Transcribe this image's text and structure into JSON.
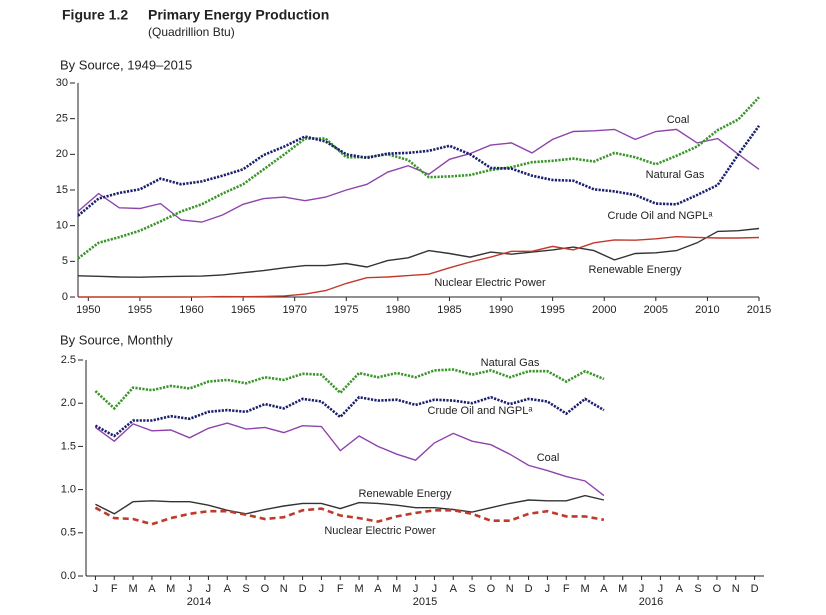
{
  "header": {
    "figure": "Figure 1.2",
    "title": "Primary Energy Production",
    "subtitle": "(Quadrillion Btu)"
  },
  "chart_data": [
    {
      "type": "line",
      "title": "By Source, 1949–2015",
      "x": [
        1949,
        1951,
        1953,
        1955,
        1957,
        1959,
        1961,
        1963,
        1965,
        1967,
        1969,
        1971,
        1973,
        1975,
        1977,
        1979,
        1981,
        1983,
        1985,
        1987,
        1989,
        1991,
        1993,
        1995,
        1997,
        1999,
        2001,
        2003,
        2005,
        2007,
        2009,
        2011,
        2013,
        2015
      ],
      "xlim": [
        1949,
        2015
      ],
      "xticks": [
        1950,
        1955,
        1960,
        1965,
        1970,
        1975,
        1980,
        1985,
        1990,
        1995,
        2000,
        2005,
        2010,
        2015
      ],
      "ylim": [
        0,
        30
      ],
      "yticks": [
        0,
        5,
        10,
        15,
        20,
        25,
        30
      ],
      "series": [
        {
          "name": "Coal",
          "color": "#8e44ad",
          "style": "solid",
          "values": [
            12,
            14.5,
            12.5,
            12.4,
            13.1,
            10.8,
            10.5,
            11.5,
            13,
            13.8,
            14,
            13.5,
            14,
            15,
            15.8,
            17.5,
            18.4,
            17.2,
            19.3,
            20.1,
            21.3,
            21.6,
            20.2,
            22.1,
            23.2,
            23.3,
            23.5,
            22.1,
            23.2,
            23.5,
            21.6,
            22.2,
            20,
            17.9
          ]
        },
        {
          "name": "Natural Gas",
          "color": "#3a962a",
          "style": "dotted",
          "values": [
            5.4,
            7.6,
            8.4,
            9.3,
            10.6,
            12,
            13,
            14.5,
            15.8,
            17.9,
            20,
            22.2,
            22.2,
            19.6,
            19.6,
            20,
            19.2,
            16.8,
            16.9,
            17.1,
            17.8,
            18.2,
            18.9,
            19.1,
            19.4,
            19,
            20.2,
            19.6,
            18.6,
            19.8,
            21.1,
            23.4,
            24.9,
            28
          ]
        },
        {
          "name": "Crude Oil and NGPLᵃ",
          "color": "#1a1f6e",
          "style": "dotted",
          "values": [
            11.4,
            13.8,
            14.6,
            15.1,
            16.6,
            15.8,
            16.2,
            17,
            17.9,
            19.9,
            21.1,
            22.5,
            21.8,
            20,
            19.5,
            20.1,
            20.2,
            20.5,
            21.2,
            20,
            18.1,
            18,
            17,
            16.4,
            16.3,
            15.1,
            14.8,
            14.3,
            13.1,
            13,
            14.3,
            15.7,
            20,
            24
          ]
        },
        {
          "name": "Renewable Energy",
          "color": "#333333",
          "style": "solid",
          "values": [
            2.97,
            2.9,
            2.8,
            2.78,
            2.85,
            2.9,
            2.93,
            3.1,
            3.4,
            3.7,
            4.1,
            4.4,
            4.4,
            4.7,
            4.2,
            5.1,
            5.5,
            6.5,
            6.1,
            5.6,
            6.3,
            6,
            6.3,
            6.6,
            7,
            6.5,
            5.2,
            6.1,
            6.2,
            6.5,
            7.6,
            9.2,
            9.3,
            9.6
          ]
        },
        {
          "name": "Nuclear Electric Power",
          "color": "#c0392b",
          "style": "solid",
          "values": [
            0,
            0,
            0,
            0,
            0,
            0,
            0.02,
            0.05,
            0.04,
            0.09,
            0.15,
            0.4,
            0.9,
            1.9,
            2.7,
            2.8,
            3,
            3.2,
            4.1,
            4.9,
            5.6,
            6.4,
            6.4,
            7.1,
            6.6,
            7.6,
            8,
            7.96,
            8.16,
            8.46,
            8.36,
            8.27,
            8.27,
            8.34
          ]
        }
      ]
    },
    {
      "type": "line",
      "title": "By Source, Monthly",
      "categories": [
        "J",
        "F",
        "M",
        "A",
        "M",
        "J",
        "J",
        "A",
        "S",
        "O",
        "N",
        "D",
        "J",
        "F",
        "M",
        "A",
        "M",
        "J",
        "J",
        "A",
        "S",
        "O",
        "N",
        "D",
        "J",
        "F",
        "M",
        "A",
        "M",
        "J",
        "J",
        "A",
        "S",
        "O",
        "N",
        "D"
      ],
      "year_labels": [
        "2014",
        "2015",
        "2016"
      ],
      "ylim": [
        0,
        2.5
      ],
      "yticks": [
        {
          "value": 0,
          "label": "0.0"
        },
        0.5,
        {
          "value": 1,
          "label": "1.0"
        },
        1.5,
        {
          "value": 2,
          "label": "2.0"
        },
        2.5
      ],
      "series": [
        {
          "name": "Natural Gas",
          "color": "#3a962a",
          "style": "dotted",
          "values": [
            2.14,
            1.94,
            2.18,
            2.15,
            2.2,
            2.17,
            2.25,
            2.27,
            2.23,
            2.3,
            2.27,
            2.34,
            2.33,
            2.12,
            2.35,
            2.3,
            2.35,
            2.3,
            2.38,
            2.39,
            2.33,
            2.38,
            2.3,
            2.37,
            2.37,
            2.25,
            2.37,
            2.28,
            null,
            null,
            null,
            null,
            null,
            null,
            null,
            null
          ]
        },
        {
          "name": "Crude Oil and NGPLᵃ",
          "color": "#1a1f6e",
          "style": "dotted",
          "values": [
            1.74,
            1.62,
            1.8,
            1.8,
            1.85,
            1.82,
            1.9,
            1.92,
            1.9,
            1.99,
            1.94,
            2.05,
            2.02,
            1.84,
            2.07,
            2.03,
            2.04,
            1.98,
            2.04,
            2.03,
            2,
            2.07,
            1.99,
            2.05,
            2.02,
            1.88,
            2.05,
            1.92,
            null,
            null,
            null,
            null,
            null,
            null,
            null,
            null
          ]
        },
        {
          "name": "Coal",
          "color": "#8e44ad",
          "style": "solid",
          "values": [
            1.72,
            1.56,
            1.76,
            1.68,
            1.69,
            1.6,
            1.71,
            1.77,
            1.7,
            1.72,
            1.66,
            1.74,
            1.73,
            1.45,
            1.62,
            1.5,
            1.41,
            1.34,
            1.54,
            1.65,
            1.56,
            1.52,
            1.41,
            1.28,
            1.22,
            1.15,
            1.1,
            0.93,
            null,
            null,
            null,
            null,
            null,
            null,
            null,
            null
          ]
        },
        {
          "name": "Renewable Energy",
          "color": "#333333",
          "style": "solid",
          "values": [
            0.83,
            0.72,
            0.86,
            0.87,
            0.86,
            0.86,
            0.82,
            0.76,
            0.72,
            0.77,
            0.81,
            0.84,
            0.84,
            0.78,
            0.85,
            0.84,
            0.82,
            0.79,
            0.79,
            0.77,
            0.74,
            0.79,
            0.84,
            0.88,
            0.87,
            0.87,
            0.93,
            0.88,
            null,
            null,
            null,
            null,
            null,
            null,
            null,
            null
          ]
        },
        {
          "name": "Nuclear Electric Power",
          "color": "#c0392b",
          "style": "dashed",
          "values": [
            0.79,
            0.67,
            0.66,
            0.6,
            0.67,
            0.72,
            0.75,
            0.75,
            0.71,
            0.66,
            0.68,
            0.76,
            0.78,
            0.7,
            0.67,
            0.63,
            0.69,
            0.73,
            0.76,
            0.76,
            0.72,
            0.64,
            0.64,
            0.72,
            0.75,
            0.69,
            0.69,
            0.65,
            null,
            null,
            null,
            null,
            null,
            null,
            null,
            null
          ]
        }
      ]
    }
  ]
}
